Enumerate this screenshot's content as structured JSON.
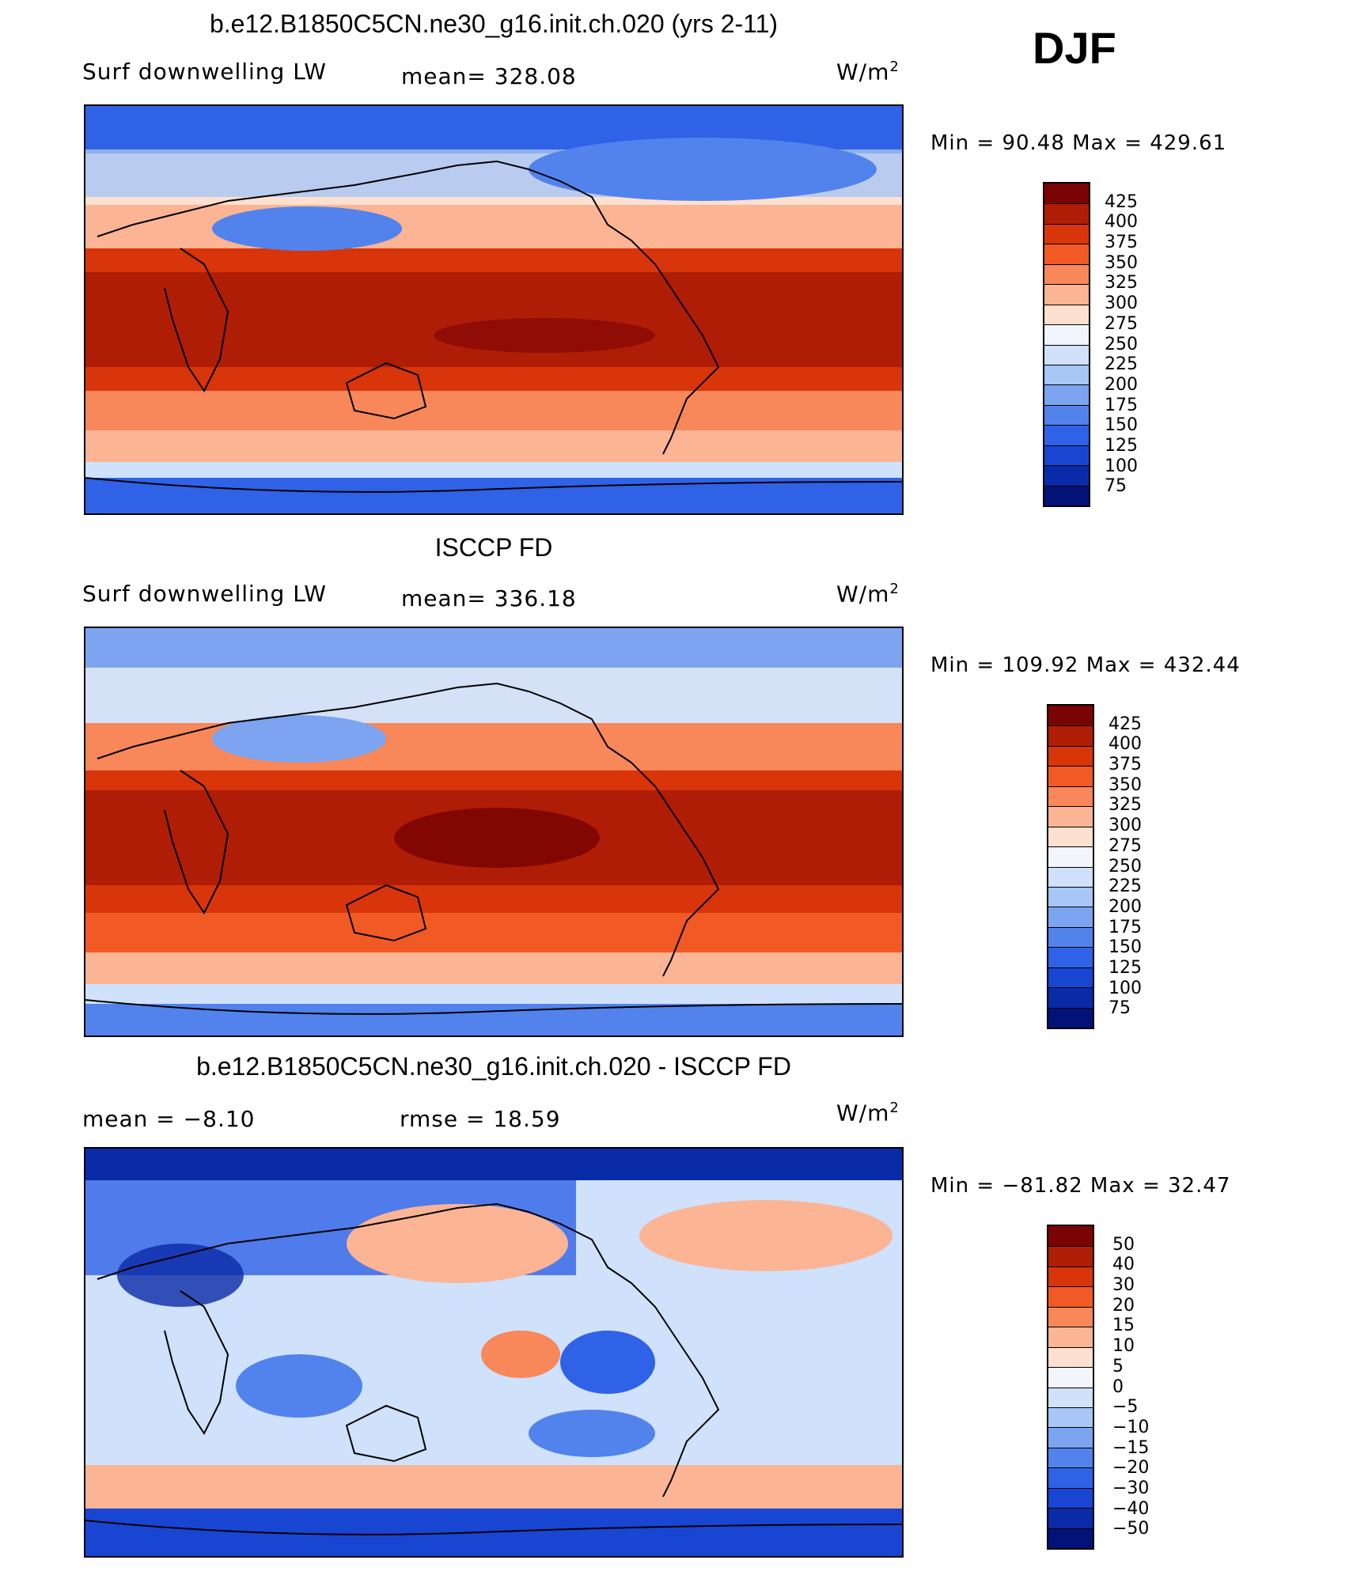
{
  "season": "DJF",
  "unit_base": "W/m",
  "unit_exp": "2",
  "panels": [
    {
      "title": "b.e12.B1850C5CN.ne30_g16.init.ch.020 (yrs 2-11)",
      "left_label": "Surf downwelling LW",
      "stat_label": "mean= 328.08",
      "minmax": "Min =   90.48 Max = 429.61",
      "colorbar": {
        "colors": [
          "#7a0403",
          "#b01d06",
          "#d8350b",
          "#f15a24",
          "#f8875a",
          "#fbb494",
          "#fde0cf",
          "#f2f5fb",
          "#cfe1fb",
          "#a8c6f6",
          "#7ca4f0",
          "#5283ec",
          "#2f62e6",
          "#1945d3",
          "#0a2ba8",
          "#031277"
        ],
        "ticks": [
          "425",
          "400",
          "375",
          "350",
          "325",
          "300",
          "275",
          "250",
          "225",
          "200",
          "175",
          "150",
          "125",
          "100",
          "75"
        ]
      }
    },
    {
      "title": "ISCCP FD",
      "left_label": "Surf downwelling LW",
      "stat_label": "mean= 336.18",
      "minmax": "Min = 109.92 Max = 432.44",
      "colorbar": {
        "colors": [
          "#7a0403",
          "#b01d06",
          "#d8350b",
          "#f15a24",
          "#f8875a",
          "#fbb494",
          "#fde0cf",
          "#f2f5fb",
          "#cfe1fb",
          "#a8c6f6",
          "#7ca4f0",
          "#5283ec",
          "#2f62e6",
          "#1945d3",
          "#0a2ba8",
          "#031277"
        ],
        "ticks": [
          "425",
          "400",
          "375",
          "350",
          "325",
          "300",
          "275",
          "250",
          "225",
          "200",
          "175",
          "150",
          "125",
          "100",
          "75"
        ]
      }
    },
    {
      "title": "b.e12.B1850C5CN.ne30_g16.init.ch.020 - ISCCP FD",
      "left_label": "mean =   −8.10",
      "stat_label": "rmse =   18.59",
      "minmax": "Min = −81.82 Max =   32.47",
      "colorbar": {
        "colors": [
          "#7a0403",
          "#b01d06",
          "#d8350b",
          "#f15a24",
          "#f8875a",
          "#fbb494",
          "#fde0cf",
          "#f2f5fb",
          "#cfe1fb",
          "#a8c6f6",
          "#7ca4f0",
          "#5283ec",
          "#2f62e6",
          "#1945d3",
          "#0a2ba8",
          "#031277"
        ],
        "ticks": [
          "50",
          "40",
          "30",
          "20",
          "15",
          "10",
          "5",
          "0",
          "−5",
          "−10",
          "−15",
          "−20",
          "−30",
          "−40",
          "−50"
        ]
      }
    }
  ]
}
